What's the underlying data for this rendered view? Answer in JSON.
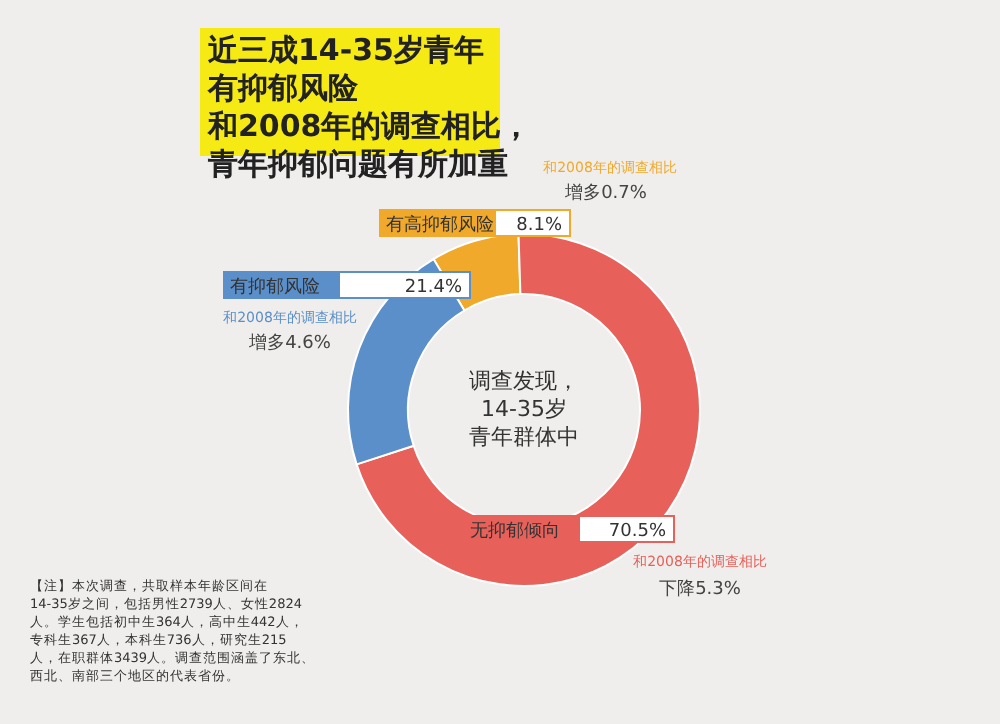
{
  "chart_data": {
    "type": "donut",
    "title": "近三成14-35岁青年有抑郁风险和2008年的调查相比，青年抑郁问题有所加重",
    "categories": [
      "有高抑郁风险",
      "无抑郁倾向",
      "有抑郁风险"
    ],
    "values": [
      8.1,
      70.5,
      21.4
    ],
    "value_labels": [
      "8.1%",
      "70.5%",
      "21.4%"
    ],
    "colors": [
      "#f0a92a",
      "#e8605a",
      "#5b8fc9"
    ],
    "annotations": [
      "和2008年的调查相比",
      "增多0.7%",
      "和2008年的调查相比",
      "下降5.3%",
      "和2008年的调查相比",
      "增多4.6%",
      "调查发现，14-35岁青年群体中",
      "【注】本次调查，共取样本年龄区间在14-35岁之间，包括男性2739人、女性2824人。学生包括初中生364人，高中生442人，专科生367人，本科生736人，研究生215人，在职群体3439人。调查范围涵盖了东北、西北、南部三个地区的代表省份。"
    ]
  }
}
